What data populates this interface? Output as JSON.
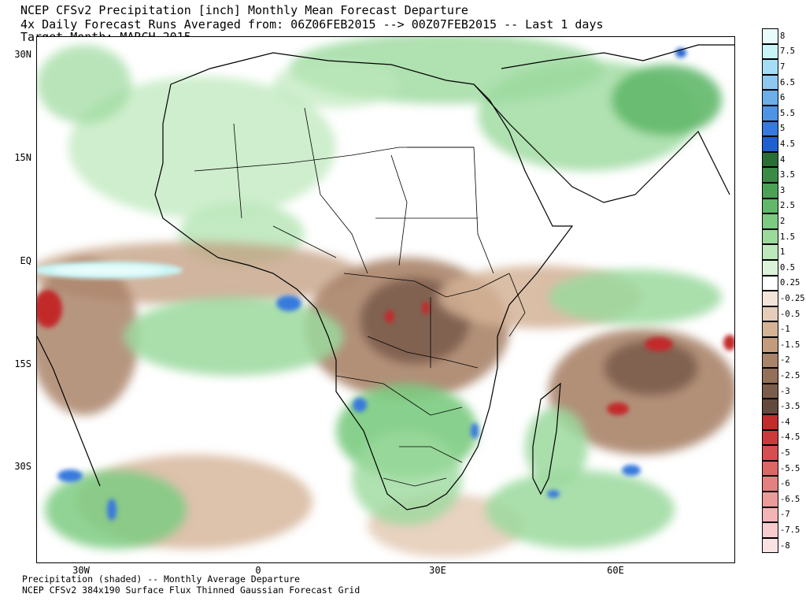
{
  "header": {
    "line1": "NCEP CFSv2 Precipitation [inch] Monthly Mean Forecast Departure",
    "line2": "4x Daily Forecast Runs Averaged from: 06Z06FEB2015 --> 00Z07FEB2015 -- Last 1 days",
    "line3": "Target Month: MARCH 2015"
  },
  "footer": {
    "line1": "Precipitation (shaded) -- Monthly Average Departure",
    "line2": "NCEP CFSv2 384x190 Surface Flux Thinned Gaussian Forecast Grid"
  },
  "axes": {
    "y_labels": [
      "30N",
      "15N",
      "EQ",
      "15S",
      "30S"
    ],
    "x_labels": [
      "30W",
      "0",
      "30E",
      "60E"
    ]
  },
  "colorbar": {
    "labels": [
      "8",
      "7.5",
      "7",
      "6.5",
      "6",
      "5.5",
      "5",
      "4.5",
      "4",
      "3.5",
      "3",
      "2.5",
      "2",
      "1.5",
      "1",
      "0.5",
      "0.25",
      "-0.25",
      "-0.5",
      "-1",
      "-1.5",
      "-2",
      "-2.5",
      "-3",
      "-3.5",
      "-4",
      "-4.5",
      "-5",
      "-5.5",
      "-6",
      "-6.5",
      "-7",
      "-7.5",
      "-8"
    ],
    "colors": [
      "#e8fcfc",
      "#c9f5f7",
      "#a7ddf4",
      "#8ec8f0",
      "#6baee8",
      "#4f93e4",
      "#3779dd",
      "#1f60cf",
      "#2a6e36",
      "#3b8a47",
      "#4ba155",
      "#61b86a",
      "#7ccb81",
      "#9bd99d",
      "#bde8bc",
      "#dbf3d9",
      "#ffffff",
      "#f3e4d8",
      "#e5cdb9",
      "#d4b397",
      "#c29c7d",
      "#aa846a",
      "#93705a",
      "#7c5d4c",
      "#64493d",
      "#c22c2c",
      "#cc3b3b",
      "#d44f4f",
      "#dc6767",
      "#e48080",
      "#ec9b9b",
      "#f2b4b4",
      "#f7cccc",
      "#fbe2e2"
    ]
  },
  "legend_scale": {
    "min": -8,
    "max": 8,
    "units": "inch"
  }
}
